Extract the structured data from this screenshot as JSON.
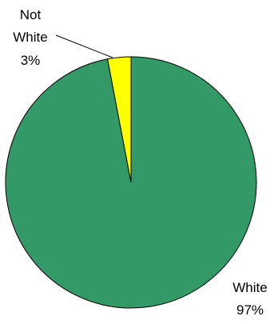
{
  "chart_data": {
    "type": "pie",
    "slices": [
      {
        "name": "White",
        "value": 97,
        "label": "97%",
        "color": "#339966"
      },
      {
        "name": "Not White",
        "value": 3,
        "label": "3%",
        "color": "#FFFF00"
      }
    ],
    "labels": {
      "white": {
        "line1": "White",
        "line2": "97%"
      },
      "not_white": {
        "line1": "Not",
        "line2": "White",
        "line3": "3%"
      }
    },
    "legend": "none"
  }
}
